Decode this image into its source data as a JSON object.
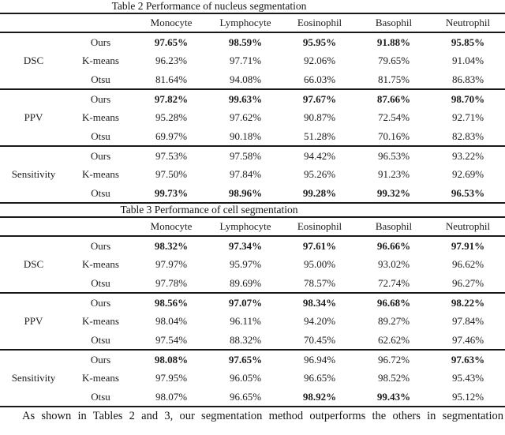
{
  "page": {
    "background": "#ffffff",
    "text_color": "#1c1c1c",
    "rule_color": "#1a1a1a"
  },
  "tables": [
    {
      "title": "Table 2 Performance of nucleus segmentation",
      "columns": [
        "Monocyte",
        "Lymphocyte",
        "Eosinophil",
        "Basophil",
        "Neutrophil"
      ],
      "sections": [
        {
          "metric": "DSC",
          "rows": [
            {
              "method": "Ours",
              "values": [
                "97.65%",
                "98.59%",
                "95.95%",
                "91.88%",
                "95.85%"
              ],
              "bold": [
                true,
                true,
                true,
                true,
                true
              ]
            },
            {
              "method": "K-means",
              "values": [
                "96.23%",
                "97.71%",
                "92.06%",
                "79.65%",
                "91.04%"
              ],
              "bold": [
                false,
                false,
                false,
                false,
                false
              ]
            },
            {
              "method": "Otsu",
              "values": [
                "81.64%",
                "94.08%",
                "66.03%",
                "81.75%",
                "86.83%"
              ],
              "bold": [
                false,
                false,
                false,
                false,
                false
              ]
            }
          ]
        },
        {
          "metric": "PPV",
          "rows": [
            {
              "method": "Ours",
              "values": [
                "97.82%",
                "99.63%",
                "97.67%",
                "87.66%",
                "98.70%"
              ],
              "bold": [
                true,
                true,
                true,
                true,
                true
              ]
            },
            {
              "method": "K-means",
              "values": [
                "95.28%",
                "97.62%",
                "90.87%",
                "72.54%",
                "92.71%"
              ],
              "bold": [
                false,
                false,
                false,
                false,
                false
              ]
            },
            {
              "method": "Otsu",
              "values": [
                "69.97%",
                "90.18%",
                "51.28%",
                "70.16%",
                "82.83%"
              ],
              "bold": [
                false,
                false,
                false,
                false,
                false
              ]
            }
          ]
        },
        {
          "metric": "Sensitivity",
          "rows": [
            {
              "method": "Ours",
              "values": [
                "97.53%",
                "97.58%",
                "94.42%",
                "96.53%",
                "93.22%"
              ],
              "bold": [
                false,
                false,
                false,
                false,
                false
              ]
            },
            {
              "method": "K-means",
              "values": [
                "97.50%",
                "97.84%",
                "95.26%",
                "91.23%",
                "92.69%"
              ],
              "bold": [
                false,
                false,
                false,
                false,
                false
              ]
            },
            {
              "method": "Otsu",
              "values": [
                "99.73%",
                "98.96%",
                "99.28%",
                "99.32%",
                "96.53%"
              ],
              "bold": [
                true,
                true,
                true,
                true,
                true
              ]
            }
          ]
        }
      ]
    },
    {
      "title": "Table 3 Performance of cell segmentation",
      "columns": [
        "Monocyte",
        "Lymphocyte",
        "Eosinophil",
        "Basophil",
        "Neutrophil"
      ],
      "sections": [
        {
          "metric": "DSC",
          "rows": [
            {
              "method": "Ours",
              "values": [
                "98.32%",
                "97.34%",
                "97.61%",
                "96.66%",
                "97.91%"
              ],
              "bold": [
                true,
                true,
                true,
                true,
                true
              ]
            },
            {
              "method": "K-means",
              "values": [
                "97.97%",
                "95.97%",
                "95.00%",
                "93.02%",
                "96.62%"
              ],
              "bold": [
                false,
                false,
                false,
                false,
                false
              ]
            },
            {
              "method": "Otsu",
              "values": [
                "97.78%",
                "89.69%",
                "78.57%",
                "72.74%",
                "96.27%"
              ],
              "bold": [
                false,
                false,
                false,
                false,
                false
              ]
            }
          ]
        },
        {
          "metric": "PPV",
          "rows": [
            {
              "method": "Ours",
              "values": [
                "98.56%",
                "97.07%",
                "98.34%",
                "96.68%",
                "98.22%"
              ],
              "bold": [
                true,
                true,
                true,
                true,
                true
              ]
            },
            {
              "method": "K-means",
              "values": [
                "98.04%",
                "96.11%",
                "94.20%",
                "89.27%",
                "97.84%"
              ],
              "bold": [
                false,
                false,
                false,
                false,
                false
              ]
            },
            {
              "method": "Otsu",
              "values": [
                "97.54%",
                "88.32%",
                "70.45%",
                "62.62%",
                "97.46%"
              ],
              "bold": [
                false,
                false,
                false,
                false,
                false
              ]
            }
          ]
        },
        {
          "metric": "Sensitivity",
          "rows": [
            {
              "method": "Ours",
              "values": [
                "98.08%",
                "97.65%",
                "96.94%",
                "96.72%",
                "97.63%"
              ],
              "bold": [
                true,
                true,
                false,
                false,
                true
              ]
            },
            {
              "method": "K-means",
              "values": [
                "97.95%",
                "96.05%",
                "96.65%",
                "98.52%",
                "95.43%"
              ],
              "bold": [
                false,
                false,
                false,
                false,
                false
              ]
            },
            {
              "method": "Otsu",
              "values": [
                "98.07%",
                "96.65%",
                "98.92%",
                "99.43%",
                "95.12%"
              ],
              "bold": [
                false,
                false,
                true,
                true,
                false
              ]
            }
          ]
        }
      ]
    }
  ],
  "footer": {
    "text": "As shown in Tables 2 and 3, our segmentation method outperforms the others in segmentation"
  }
}
